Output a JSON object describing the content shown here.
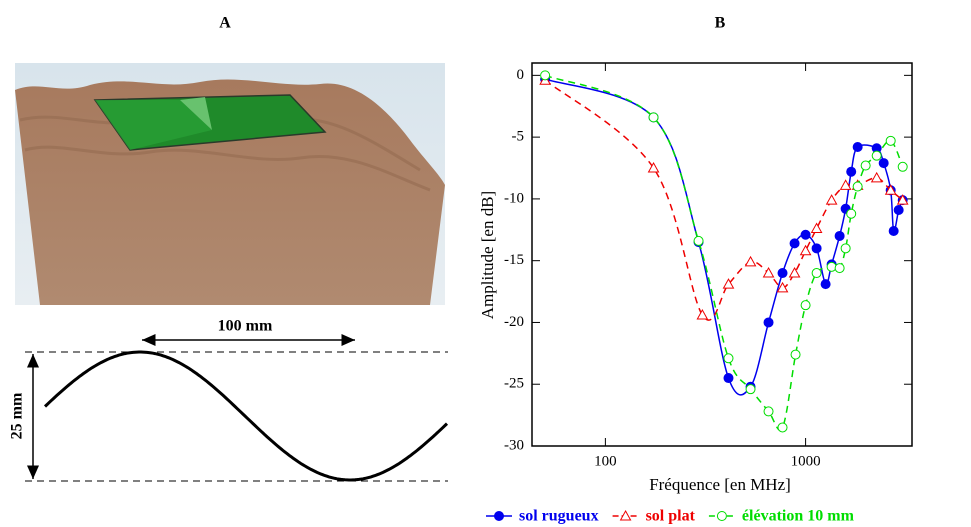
{
  "figure": {
    "panel_a_label": "A",
    "dimension_width": "100 mm",
    "dimension_height": "25 mm"
  },
  "chart_data": {
    "type": "line",
    "panel_label": "B",
    "x_label": "Fréquence  [en MHz]",
    "y_label": "Amplitude  [en dB]",
    "x_scale": "log",
    "xlim": [
      43,
      3400
    ],
    "ylim": [
      -30,
      1
    ],
    "xticks": [
      100,
      1000
    ],
    "yticks": [
      0,
      -5,
      -10,
      -15,
      -20,
      -25,
      -30
    ],
    "legend": "bottom",
    "series": [
      {
        "name": "sol rugueux",
        "color": "#0000ee",
        "marker": "circle-filled",
        "dash": "solid",
        "x": [
          50,
          174,
          292,
          412,
          531,
          653,
          767,
          881,
          1000,
          1135,
          1259,
          1349,
          1479,
          1585,
          1690,
          1820,
          2265,
          2455,
          2661,
          2754,
          2917,
          3055
        ],
        "values": [
          -0.3,
          -3.4,
          -13.5,
          -24.5,
          -25.2,
          -20,
          -16,
          -13.6,
          -12.9,
          -14,
          -16.9,
          -15.3,
          -13,
          -10.8,
          -7.8,
          -5.8,
          -5.9,
          -7.1,
          -9.3,
          -12.6,
          -10.9,
          -10.1
        ]
      },
      {
        "name": "sol plat",
        "color": "#ee0000",
        "marker": "triangle-open",
        "dash": "dashed",
        "x": [
          50,
          174,
          305,
          412,
          531,
          653,
          767,
          881,
          1000,
          1135,
          1349,
          1585,
          1820,
          2265,
          2661,
          3055
        ],
        "values": [
          -0.4,
          -7.5,
          -19.4,
          -16.9,
          -15.1,
          -16,
          -17.2,
          -16,
          -14.2,
          -12.4,
          -10.1,
          -8.9,
          -8.9,
          -8.3,
          -9.3,
          -10.1
        ]
      },
      {
        "name": "élévation 10 mm",
        "color": "#00dd00",
        "marker": "circle-open",
        "dash": "dashed",
        "x": [
          50,
          174,
          292,
          412,
          531,
          653,
          767,
          891,
          1000,
          1135,
          1349,
          1479,
          1585,
          1690,
          1820,
          1995,
          2265,
          2661,
          3055
        ],
        "values": [
          0,
          -3.4,
          -13.4,
          -22.9,
          -25.4,
          -27.2,
          -28.5,
          -22.6,
          -18.6,
          -16,
          -15.5,
          -15.6,
          -14,
          -11.2,
          -9,
          -7.3,
          -6.5,
          -5.3,
          -7.4
        ]
      }
    ]
  }
}
